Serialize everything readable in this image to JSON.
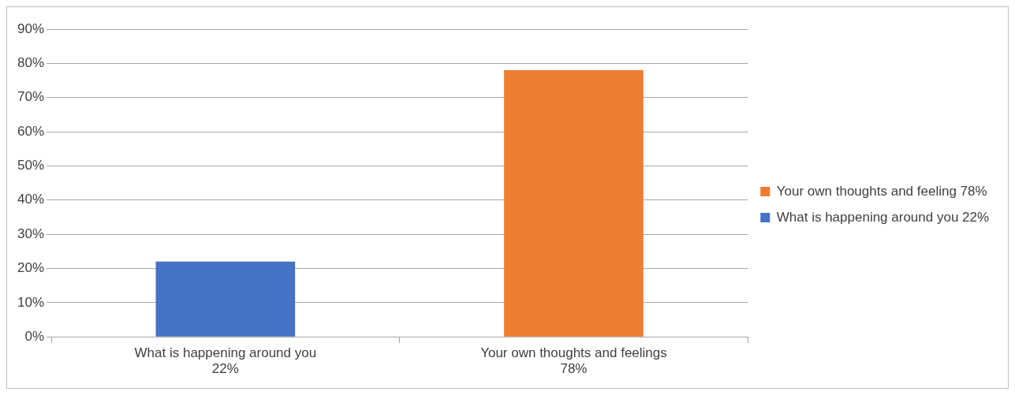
{
  "chart_data": {
    "type": "bar",
    "stacked": true,
    "categories": [
      "What is happening around you 22%",
      "Your own thoughts and feelings 78%"
    ],
    "series": [
      {
        "name": "What is happening around you 22%",
        "color": "#4472c4",
        "values": [
          22,
          null
        ]
      },
      {
        "name": "Your own thoughts and feeling 78%",
        "color": "#ed7d31",
        "values": [
          null,
          78
        ]
      }
    ],
    "ylim": [
      0,
      90
    ],
    "yticks": [
      {
        "value": 0,
        "label": "0%"
      },
      {
        "value": 10,
        "label": "10%"
      },
      {
        "value": 20,
        "label": "20%"
      },
      {
        "value": 30,
        "label": "30%"
      },
      {
        "value": 40,
        "label": "40%"
      },
      {
        "value": 50,
        "label": "50%"
      },
      {
        "value": 60,
        "label": "60%"
      },
      {
        "value": 70,
        "label": "70%"
      },
      {
        "value": 80,
        "label": "80%"
      },
      {
        "value": 90,
        "label": "90%"
      }
    ],
    "grid": "y",
    "legend": "right"
  }
}
